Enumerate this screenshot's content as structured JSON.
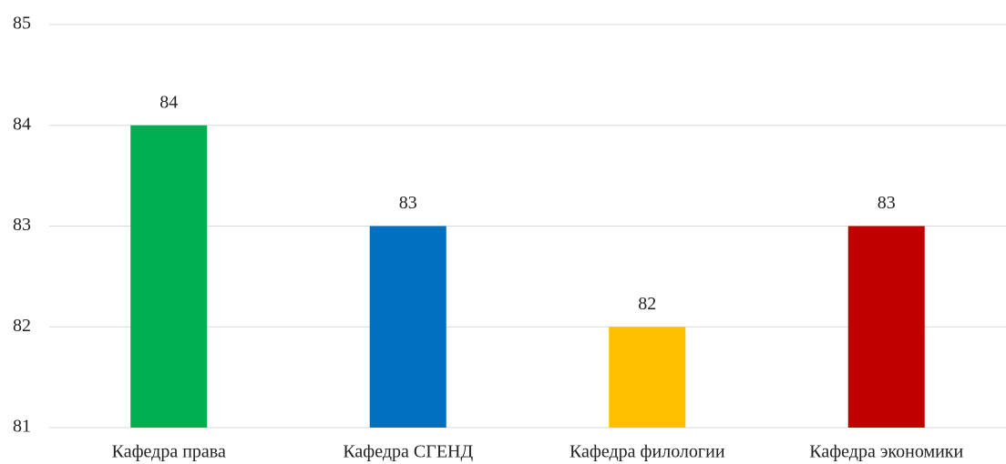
{
  "chart_data": {
    "type": "bar",
    "categories": [
      "Кафедра права",
      "Кафедра СГЕНД",
      "Кафедра филологии",
      "Кафедра экономики"
    ],
    "values": [
      84,
      83,
      82,
      83
    ],
    "colors": [
      "#00b050",
      "#0070c0",
      "#ffc000",
      "#c00000"
    ],
    "ylim": [
      81,
      85
    ],
    "yticks": [
      81,
      82,
      83,
      84,
      85
    ],
    "grid": true
  }
}
